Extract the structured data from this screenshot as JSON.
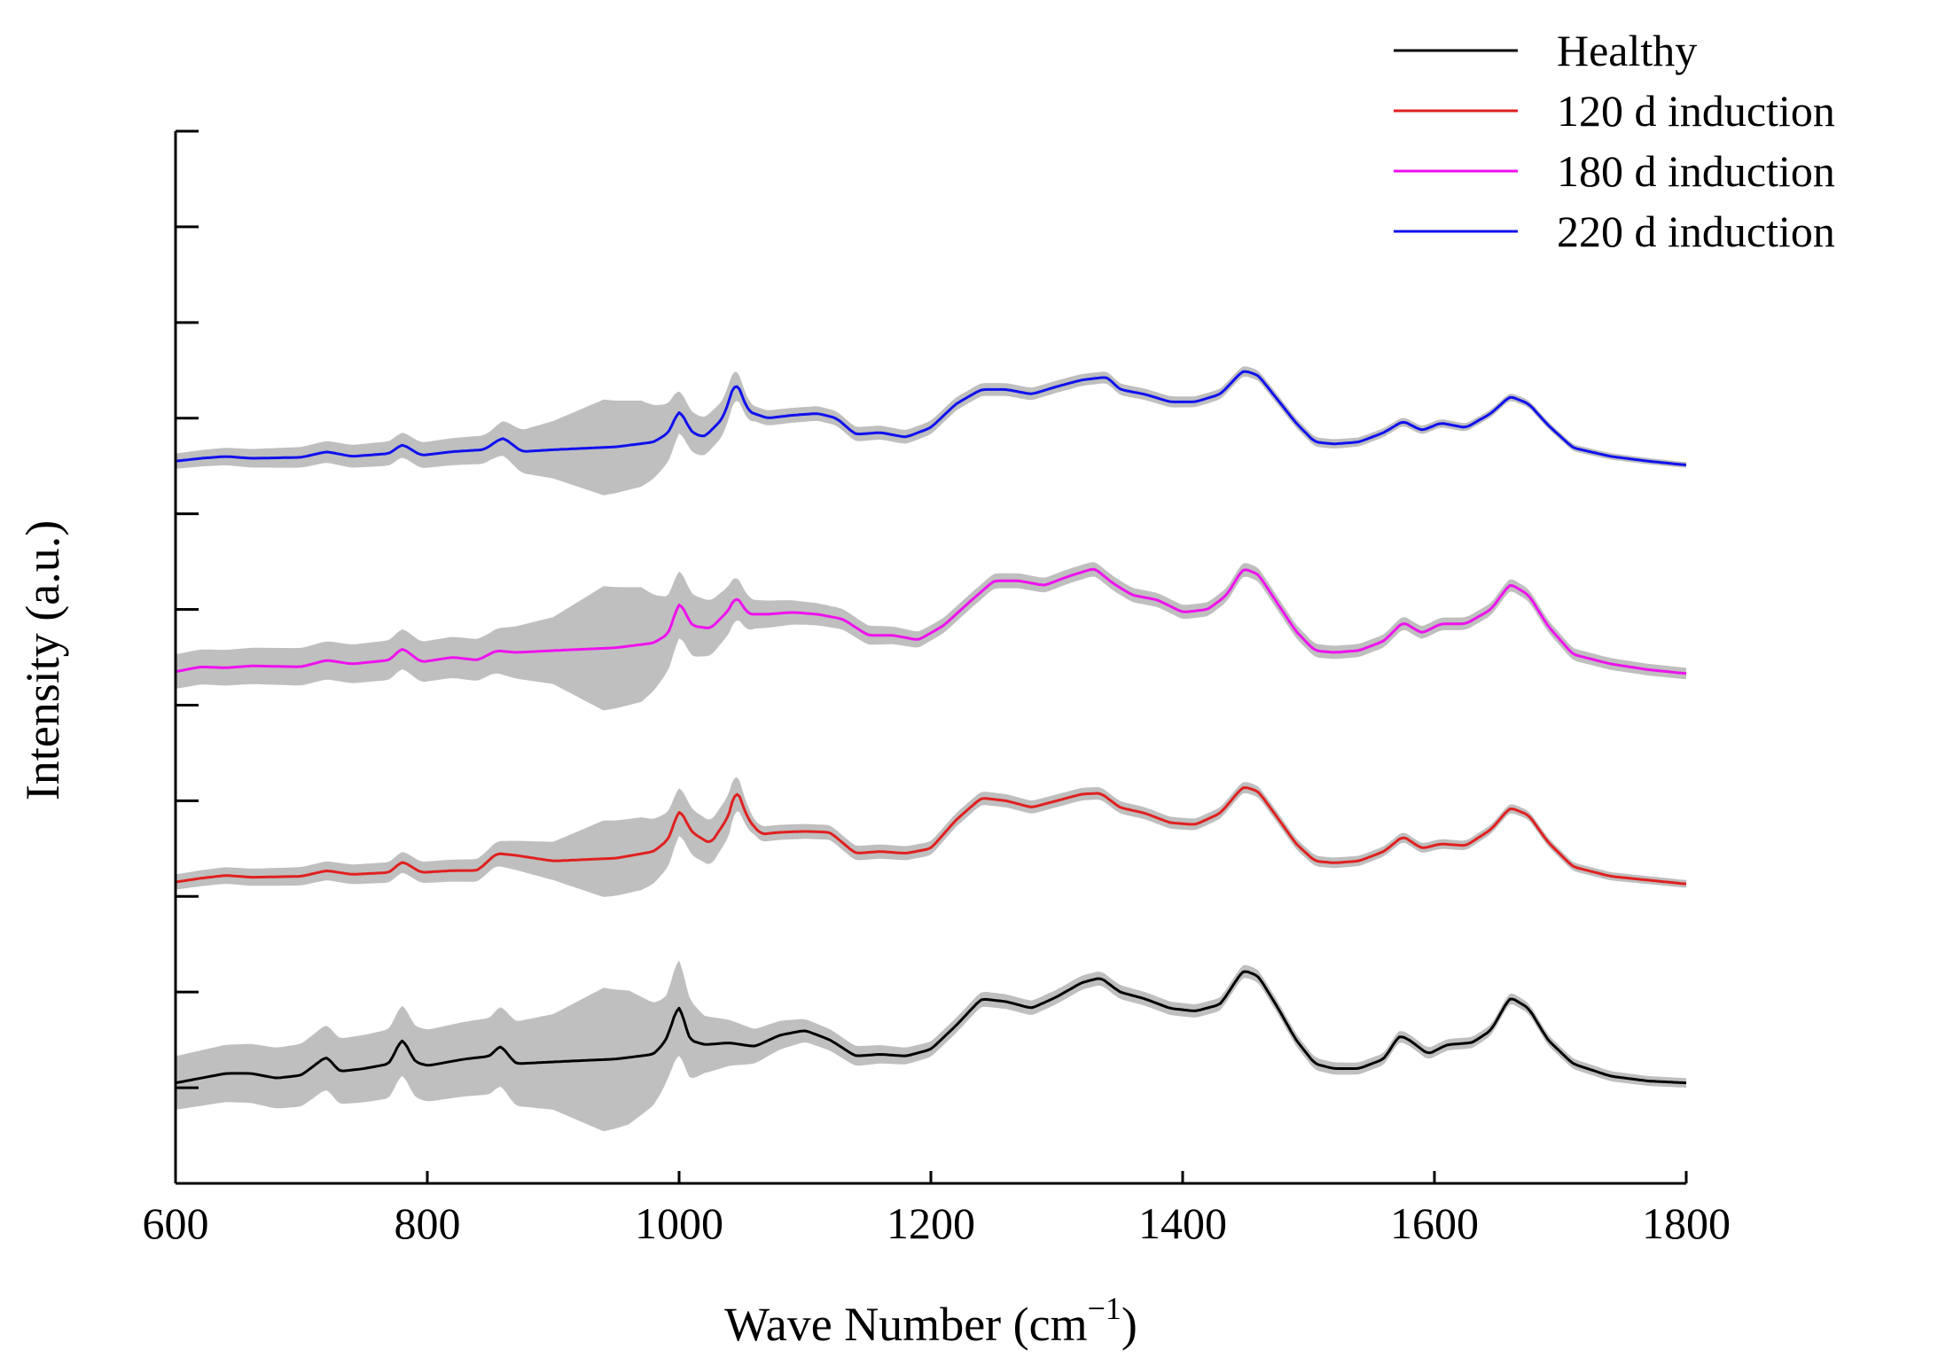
{
  "chart_data": {
    "type": "line",
    "title": "",
    "xlabel": "Wave Number",
    "xlabel_unit": "(cm",
    "xlabel_unit_sup": "−1",
    "xlabel_unit_close": ")",
    "ylabel": "Intensity (a.u.)",
    "xlim": [
      600,
      1800
    ],
    "ylim": [
      0,
      11
    ],
    "x_ticks": [
      600,
      800,
      1000,
      1200,
      1400,
      1600,
      1800
    ],
    "x_tick_labels": [
      "600",
      "800",
      "1000",
      "1200",
      "1400",
      "1600",
      "1800"
    ],
    "y_ticks": [
      0,
      1,
      2,
      3,
      4,
      5,
      6,
      7,
      8,
      9,
      10,
      11
    ],
    "y_tick_labels_shown": false,
    "band_color": "#bfbfbf",
    "legend_position": "top-right",
    "series": [
      {
        "name": "Healthy",
        "color": "#000000",
        "offset": 1.05,
        "points": [
          [
            600,
            0.0
          ],
          [
            620,
            0.05
          ],
          [
            640,
            0.1
          ],
          [
            660,
            0.1
          ],
          [
            680,
            0.05
          ],
          [
            700,
            0.08
          ],
          [
            720,
            0.28
          ],
          [
            730,
            0.12
          ],
          [
            750,
            0.15
          ],
          [
            770,
            0.2
          ],
          [
            780,
            0.48
          ],
          [
            790,
            0.22
          ],
          [
            800,
            0.18
          ],
          [
            830,
            0.25
          ],
          [
            850,
            0.28
          ],
          [
            858,
            0.4
          ],
          [
            870,
            0.2
          ],
          [
            900,
            0.22
          ],
          [
            950,
            0.25
          ],
          [
            980,
            0.3
          ],
          [
            990,
            0.45
          ],
          [
            1000,
            0.85
          ],
          [
            1008,
            0.45
          ],
          [
            1020,
            0.4
          ],
          [
            1040,
            0.42
          ],
          [
            1060,
            0.38
          ],
          [
            1080,
            0.5
          ],
          [
            1100,
            0.55
          ],
          [
            1120,
            0.45
          ],
          [
            1140,
            0.28
          ],
          [
            1160,
            0.3
          ],
          [
            1180,
            0.28
          ],
          [
            1200,
            0.35
          ],
          [
            1220,
            0.6
          ],
          [
            1240,
            0.88
          ],
          [
            1260,
            0.85
          ],
          [
            1280,
            0.78
          ],
          [
            1300,
            0.9
          ],
          [
            1320,
            1.05
          ],
          [
            1335,
            1.1
          ],
          [
            1350,
            0.95
          ],
          [
            1370,
            0.88
          ],
          [
            1390,
            0.78
          ],
          [
            1410,
            0.75
          ],
          [
            1430,
            0.82
          ],
          [
            1448,
            1.18
          ],
          [
            1460,
            1.12
          ],
          [
            1475,
            0.8
          ],
          [
            1490,
            0.45
          ],
          [
            1505,
            0.2
          ],
          [
            1520,
            0.15
          ],
          [
            1540,
            0.15
          ],
          [
            1560,
            0.25
          ],
          [
            1572,
            0.5
          ],
          [
            1580,
            0.45
          ],
          [
            1595,
            0.3
          ],
          [
            1610,
            0.4
          ],
          [
            1630,
            0.42
          ],
          [
            1645,
            0.55
          ],
          [
            1660,
            0.9
          ],
          [
            1675,
            0.78
          ],
          [
            1690,
            0.45
          ],
          [
            1710,
            0.2
          ],
          [
            1740,
            0.07
          ],
          [
            1770,
            0.02
          ],
          [
            1800,
            0.0
          ]
        ],
        "spread": [
          [
            600,
            0.28
          ],
          [
            850,
            0.4
          ],
          [
            900,
            0.5
          ],
          [
            940,
            0.75
          ],
          [
            960,
            0.7
          ],
          [
            990,
            0.45
          ],
          [
            1000,
            0.5
          ],
          [
            1020,
            0.3
          ],
          [
            1060,
            0.18
          ],
          [
            1100,
            0.12
          ],
          [
            1200,
            0.08
          ],
          [
            1800,
            0.05
          ]
        ]
      },
      {
        "name": "120 d induction",
        "color": "#e02020",
        "offset": 3.15,
        "points": [
          [
            600,
            0.0
          ],
          [
            620,
            0.04
          ],
          [
            640,
            0.07
          ],
          [
            660,
            0.05
          ],
          [
            700,
            0.06
          ],
          [
            720,
            0.12
          ],
          [
            740,
            0.08
          ],
          [
            770,
            0.1
          ],
          [
            780,
            0.22
          ],
          [
            795,
            0.1
          ],
          [
            820,
            0.12
          ],
          [
            840,
            0.12
          ],
          [
            855,
            0.3
          ],
          [
            870,
            0.28
          ],
          [
            900,
            0.22
          ],
          [
            950,
            0.25
          ],
          [
            980,
            0.32
          ],
          [
            992,
            0.45
          ],
          [
            1000,
            0.78
          ],
          [
            1010,
            0.52
          ],
          [
            1025,
            0.4
          ],
          [
            1040,
            0.7
          ],
          [
            1045,
            1.0
          ],
          [
            1055,
            0.65
          ],
          [
            1065,
            0.5
          ],
          [
            1080,
            0.52
          ],
          [
            1100,
            0.53
          ],
          [
            1120,
            0.52
          ],
          [
            1140,
            0.3
          ],
          [
            1160,
            0.32
          ],
          [
            1180,
            0.3
          ],
          [
            1200,
            0.35
          ],
          [
            1220,
            0.65
          ],
          [
            1240,
            0.88
          ],
          [
            1260,
            0.85
          ],
          [
            1280,
            0.78
          ],
          [
            1300,
            0.85
          ],
          [
            1320,
            0.92
          ],
          [
            1335,
            0.93
          ],
          [
            1350,
            0.78
          ],
          [
            1370,
            0.72
          ],
          [
            1390,
            0.62
          ],
          [
            1410,
            0.6
          ],
          [
            1430,
            0.72
          ],
          [
            1448,
            1.0
          ],
          [
            1460,
            0.95
          ],
          [
            1475,
            0.68
          ],
          [
            1490,
            0.4
          ],
          [
            1505,
            0.22
          ],
          [
            1520,
            0.2
          ],
          [
            1540,
            0.22
          ],
          [
            1560,
            0.32
          ],
          [
            1575,
            0.48
          ],
          [
            1590,
            0.35
          ],
          [
            1605,
            0.4
          ],
          [
            1625,
            0.38
          ],
          [
            1645,
            0.55
          ],
          [
            1660,
            0.78
          ],
          [
            1675,
            0.7
          ],
          [
            1690,
            0.42
          ],
          [
            1710,
            0.16
          ],
          [
            1740,
            0.06
          ],
          [
            1770,
            0.02
          ],
          [
            1800,
            -0.02
          ]
        ],
        "spread": [
          [
            600,
            0.08
          ],
          [
            850,
            0.12
          ],
          [
            900,
            0.2
          ],
          [
            940,
            0.4
          ],
          [
            970,
            0.38
          ],
          [
            1000,
            0.25
          ],
          [
            1040,
            0.22
          ],
          [
            1060,
            0.08
          ],
          [
            1800,
            0.04
          ]
        ]
      },
      {
        "name": "180 d induction",
        "color": "#ee11ee",
        "offset": 5.35,
        "points": [
          [
            600,
            0.0
          ],
          [
            620,
            0.05
          ],
          [
            640,
            0.04
          ],
          [
            660,
            0.06
          ],
          [
            700,
            0.05
          ],
          [
            720,
            0.12
          ],
          [
            740,
            0.08
          ],
          [
            770,
            0.12
          ],
          [
            780,
            0.25
          ],
          [
            795,
            0.1
          ],
          [
            820,
            0.15
          ],
          [
            840,
            0.12
          ],
          [
            855,
            0.22
          ],
          [
            870,
            0.2
          ],
          [
            900,
            0.22
          ],
          [
            950,
            0.25
          ],
          [
            980,
            0.3
          ],
          [
            992,
            0.4
          ],
          [
            1000,
            0.75
          ],
          [
            1010,
            0.48
          ],
          [
            1025,
            0.45
          ],
          [
            1040,
            0.65
          ],
          [
            1045,
            0.8
          ],
          [
            1055,
            0.6
          ],
          [
            1070,
            0.6
          ],
          [
            1090,
            0.62
          ],
          [
            1110,
            0.6
          ],
          [
            1130,
            0.55
          ],
          [
            1150,
            0.38
          ],
          [
            1170,
            0.38
          ],
          [
            1190,
            0.33
          ],
          [
            1210,
            0.48
          ],
          [
            1230,
            0.72
          ],
          [
            1250,
            0.95
          ],
          [
            1270,
            0.95
          ],
          [
            1290,
            0.9
          ],
          [
            1310,
            1.0
          ],
          [
            1330,
            1.08
          ],
          [
            1345,
            0.92
          ],
          [
            1360,
            0.8
          ],
          [
            1380,
            0.75
          ],
          [
            1400,
            0.62
          ],
          [
            1420,
            0.65
          ],
          [
            1435,
            0.8
          ],
          [
            1448,
            1.08
          ],
          [
            1460,
            1.02
          ],
          [
            1475,
            0.72
          ],
          [
            1490,
            0.42
          ],
          [
            1505,
            0.22
          ],
          [
            1520,
            0.2
          ],
          [
            1540,
            0.22
          ],
          [
            1560,
            0.32
          ],
          [
            1575,
            0.52
          ],
          [
            1590,
            0.4
          ],
          [
            1605,
            0.5
          ],
          [
            1625,
            0.5
          ],
          [
            1645,
            0.65
          ],
          [
            1660,
            0.92
          ],
          [
            1675,
            0.8
          ],
          [
            1690,
            0.48
          ],
          [
            1710,
            0.18
          ],
          [
            1740,
            0.08
          ],
          [
            1770,
            0.02
          ],
          [
            1800,
            -0.02
          ]
        ],
        "spread": [
          [
            600,
            0.18
          ],
          [
            850,
            0.22
          ],
          [
            900,
            0.35
          ],
          [
            940,
            0.65
          ],
          [
            970,
            0.6
          ],
          [
            990,
            0.4
          ],
          [
            1000,
            0.35
          ],
          [
            1040,
            0.25
          ],
          [
            1060,
            0.15
          ],
          [
            1100,
            0.12
          ],
          [
            1200,
            0.08
          ],
          [
            1800,
            0.06
          ]
        ]
      },
      {
        "name": "220 d induction",
        "color": "#1010ee",
        "offset": 7.55,
        "points": [
          [
            600,
            0.0
          ],
          [
            620,
            0.03
          ],
          [
            640,
            0.05
          ],
          [
            660,
            0.03
          ],
          [
            700,
            0.04
          ],
          [
            720,
            0.1
          ],
          [
            740,
            0.05
          ],
          [
            770,
            0.08
          ],
          [
            780,
            0.18
          ],
          [
            795,
            0.06
          ],
          [
            820,
            0.1
          ],
          [
            845,
            0.12
          ],
          [
            860,
            0.25
          ],
          [
            875,
            0.1
          ],
          [
            900,
            0.12
          ],
          [
            950,
            0.15
          ],
          [
            980,
            0.2
          ],
          [
            992,
            0.3
          ],
          [
            1000,
            0.55
          ],
          [
            1010,
            0.3
          ],
          [
            1020,
            0.25
          ],
          [
            1035,
            0.45
          ],
          [
            1045,
            0.85
          ],
          [
            1055,
            0.52
          ],
          [
            1070,
            0.45
          ],
          [
            1090,
            0.48
          ],
          [
            1110,
            0.5
          ],
          [
            1125,
            0.45
          ],
          [
            1140,
            0.28
          ],
          [
            1160,
            0.3
          ],
          [
            1180,
            0.25
          ],
          [
            1200,
            0.35
          ],
          [
            1220,
            0.6
          ],
          [
            1240,
            0.75
          ],
          [
            1260,
            0.75
          ],
          [
            1280,
            0.7
          ],
          [
            1300,
            0.78
          ],
          [
            1320,
            0.85
          ],
          [
            1340,
            0.88
          ],
          [
            1350,
            0.75
          ],
          [
            1370,
            0.7
          ],
          [
            1390,
            0.62
          ],
          [
            1410,
            0.62
          ],
          [
            1430,
            0.7
          ],
          [
            1448,
            0.95
          ],
          [
            1460,
            0.9
          ],
          [
            1475,
            0.65
          ],
          [
            1490,
            0.4
          ],
          [
            1505,
            0.2
          ],
          [
            1520,
            0.18
          ],
          [
            1540,
            0.2
          ],
          [
            1560,
            0.3
          ],
          [
            1575,
            0.42
          ],
          [
            1590,
            0.32
          ],
          [
            1605,
            0.4
          ],
          [
            1625,
            0.35
          ],
          [
            1645,
            0.5
          ],
          [
            1660,
            0.68
          ],
          [
            1675,
            0.6
          ],
          [
            1690,
            0.38
          ],
          [
            1710,
            0.14
          ],
          [
            1740,
            0.05
          ],
          [
            1770,
            0.0
          ],
          [
            1800,
            -0.04
          ]
        ],
        "spread": [
          [
            600,
            0.08
          ],
          [
            850,
            0.15
          ],
          [
            900,
            0.3
          ],
          [
            940,
            0.5
          ],
          [
            970,
            0.45
          ],
          [
            995,
            0.28
          ],
          [
            1000,
            0.22
          ],
          [
            1040,
            0.18
          ],
          [
            1060,
            0.08
          ],
          [
            1800,
            0.03
          ]
        ]
      }
    ]
  },
  "legend": {
    "items": [
      {
        "label": "Healthy",
        "color": "#000000"
      },
      {
        "label": "120 d induction",
        "color": "#e02020"
      },
      {
        "label": "180 d induction",
        "color": "#ee11ee"
      },
      {
        "label": "220 d induction",
        "color": "#1010ee"
      }
    ]
  }
}
